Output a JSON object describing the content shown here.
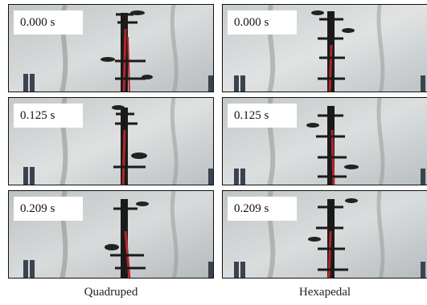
{
  "columns": [
    {
      "label": "Quadruped",
      "frames": [
        {
          "time": "0.000 s"
        },
        {
          "time": "0.125 s"
        },
        {
          "time": "0.209 s"
        }
      ]
    },
    {
      "label": "Hexapedal",
      "frames": [
        {
          "time": "0.000 s"
        },
        {
          "time": "0.125 s"
        },
        {
          "time": "0.209 s"
        }
      ]
    }
  ],
  "colors": {
    "water": "#cfd3d4",
    "robot": "#1a1a1a",
    "wire": "#b3262a",
    "post": "#3a4350"
  }
}
